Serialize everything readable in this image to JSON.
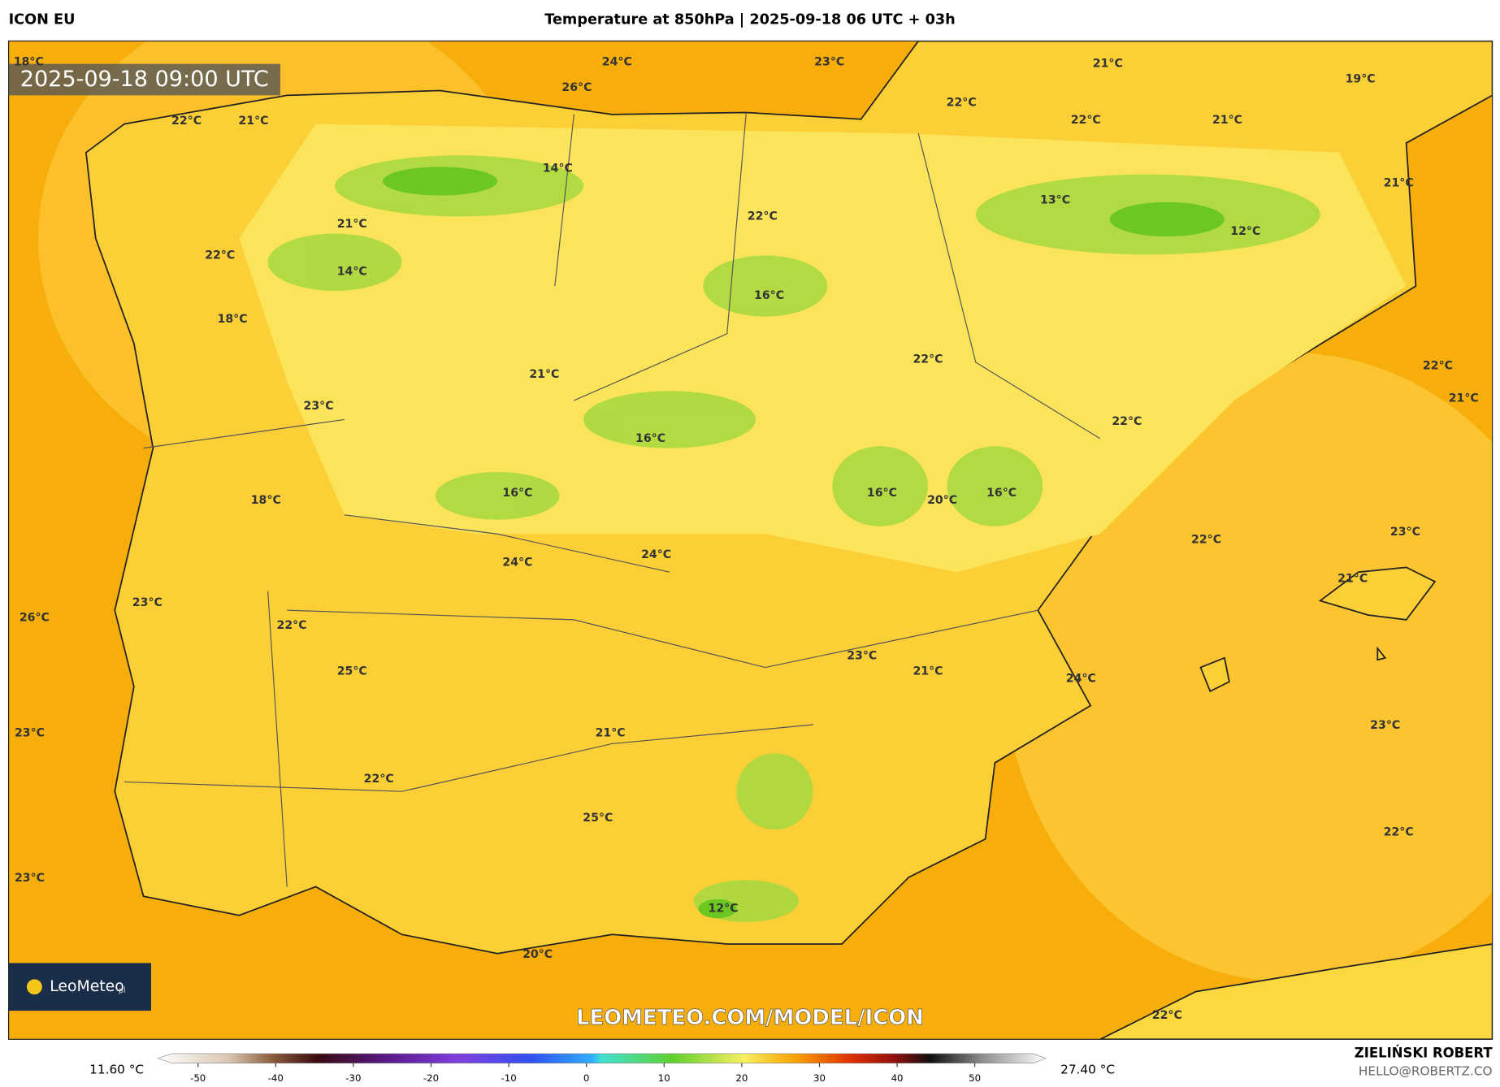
{
  "header": {
    "model": "ICON EU",
    "title": "Temperature at 850hPa | 2025-09-18 06 UTC + 03h"
  },
  "map": {
    "timestamp": "2025-09-18 09:00 UTC",
    "labels": [
      "18°C",
      "24°C",
      "23°C",
      "21°C",
      "19°C",
      "26°C",
      "22°C",
      "21°C",
      "22°C",
      "22°C",
      "21°C",
      "14°C",
      "21°C",
      "13°C",
      "22°C",
      "21°C",
      "12°C",
      "22°C",
      "14°C",
      "16°C",
      "18°C",
      "22°C",
      "22°C",
      "21°C",
      "21°C",
      "23°C",
      "22°C",
      "16°C",
      "16°C",
      "16°C",
      "20°C",
      "16°C",
      "18°C",
      "22°C",
      "23°C",
      "24°C",
      "24°C",
      "21°C",
      "23°C",
      "26°C",
      "22°C",
      "23°C",
      "21°C",
      "25°C",
      "24°C",
      "23°C",
      "23°C",
      "21°C",
      "22°C",
      "25°C",
      "22°C",
      "23°C",
      "12°C",
      "20°C",
      "22°C"
    ],
    "watermark": "LEOMETEO.COM/MODEL/ICON",
    "logo": "LeoMeteo",
    "logo_suffix": "pl"
  },
  "colorbar": {
    "min_label": "11.60 °C",
    "max_label": "27.40 °C",
    "ticks": [
      -50,
      -40,
      -30,
      -20,
      -10,
      0,
      10,
      20,
      30,
      40,
      50
    ]
  },
  "footer": {
    "author": "ZIELIŃSKI ROBERT",
    "email": "HELLO@ROBERTZ.CO"
  }
}
